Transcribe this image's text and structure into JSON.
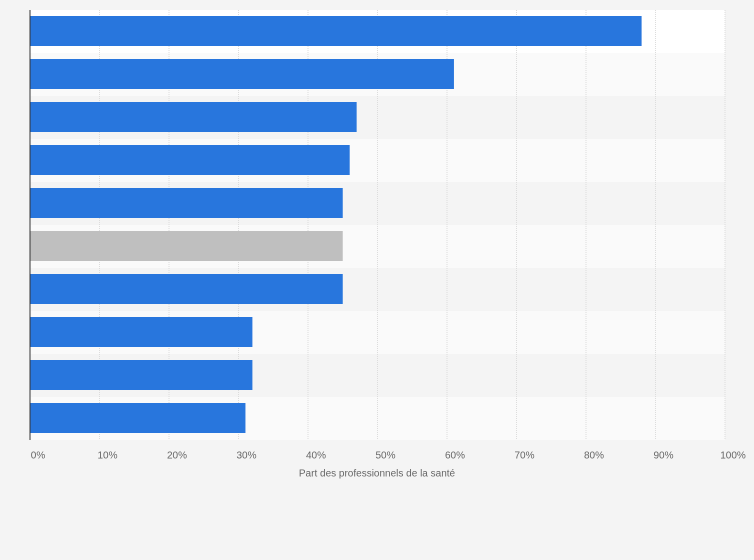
{
  "chart_data": {
    "type": "bar",
    "orientation": "horizontal",
    "x_label": "Part des professionnels de la santé",
    "categories": [
      null,
      null,
      null,
      null,
      null,
      null,
      null,
      null,
      null,
      null
    ],
    "values": [
      88,
      61,
      47,
      46,
      45,
      45,
      45,
      32,
      32,
      31
    ],
    "colors": [
      "#2876dd",
      "#2876dd",
      "#2876dd",
      "#2876dd",
      "#2876dd",
      "#bfbfbf",
      "#2876dd",
      "#2876dd",
      "#2876dd",
      "#2876dd"
    ],
    "xlim": [
      0,
      100
    ],
    "xticks": [
      {
        "value": 0,
        "label": "0%"
      },
      {
        "value": 10,
        "label": "10%"
      },
      {
        "value": 20,
        "label": "20%"
      },
      {
        "value": 30,
        "label": "30%"
      },
      {
        "value": 40,
        "label": "40%"
      },
      {
        "value": 50,
        "label": "50%"
      },
      {
        "value": 60,
        "label": "60%"
      },
      {
        "value": 70,
        "label": "70%"
      },
      {
        "value": 80,
        "label": "80%"
      },
      {
        "value": 90,
        "label": "90%"
      },
      {
        "value": 100,
        "label": "100%"
      }
    ],
    "grid": true
  }
}
